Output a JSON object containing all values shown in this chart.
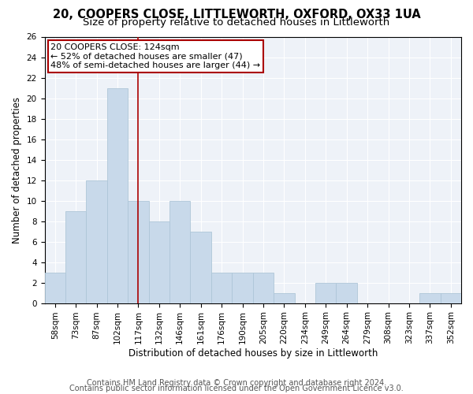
{
  "title1": "20, COOPERS CLOSE, LITTLEWORTH, OXFORD, OX33 1UA",
  "title2": "Size of property relative to detached houses in Littleworth",
  "xlabel": "Distribution of detached houses by size in Littleworth",
  "ylabel": "Number of detached properties",
  "categories": [
    "58sqm",
    "73sqm",
    "87sqm",
    "102sqm",
    "117sqm",
    "132sqm",
    "146sqm",
    "161sqm",
    "176sqm",
    "190sqm",
    "205sqm",
    "220sqm",
    "234sqm",
    "249sqm",
    "264sqm",
    "279sqm",
    "308sqm",
    "323sqm",
    "337sqm",
    "352sqm"
  ],
  "values": [
    3,
    9,
    12,
    21,
    10,
    8,
    10,
    7,
    3,
    3,
    3,
    1,
    0,
    2,
    2,
    0,
    0,
    0,
    1,
    1
  ],
  "bar_color": "#c8d9ea",
  "bar_edge_color": "#aec6d8",
  "vline_x": 4.5,
  "vline_color": "#aa0000",
  "annotation_title": "20 COOPERS CLOSE: 124sqm",
  "annotation_line1": "← 52% of detached houses are smaller (47)",
  "annotation_line2": "48% of semi-detached houses are larger (44) →",
  "annotation_box_edge_color": "#aa0000",
  "ylim": [
    0,
    26
  ],
  "yticks": [
    0,
    2,
    4,
    6,
    8,
    10,
    12,
    14,
    16,
    18,
    20,
    22,
    24,
    26
  ],
  "bg_color": "#eef2f8",
  "footer1": "Contains HM Land Registry data © Crown copyright and database right 2024.",
  "footer2": "Contains public sector information licensed under the Open Government Licence v3.0.",
  "title_fontsize": 10.5,
  "subtitle_fontsize": 9.5,
  "axis_label_fontsize": 8.5,
  "tick_fontsize": 7.5,
  "annotation_fontsize": 8,
  "footer_fontsize": 7
}
